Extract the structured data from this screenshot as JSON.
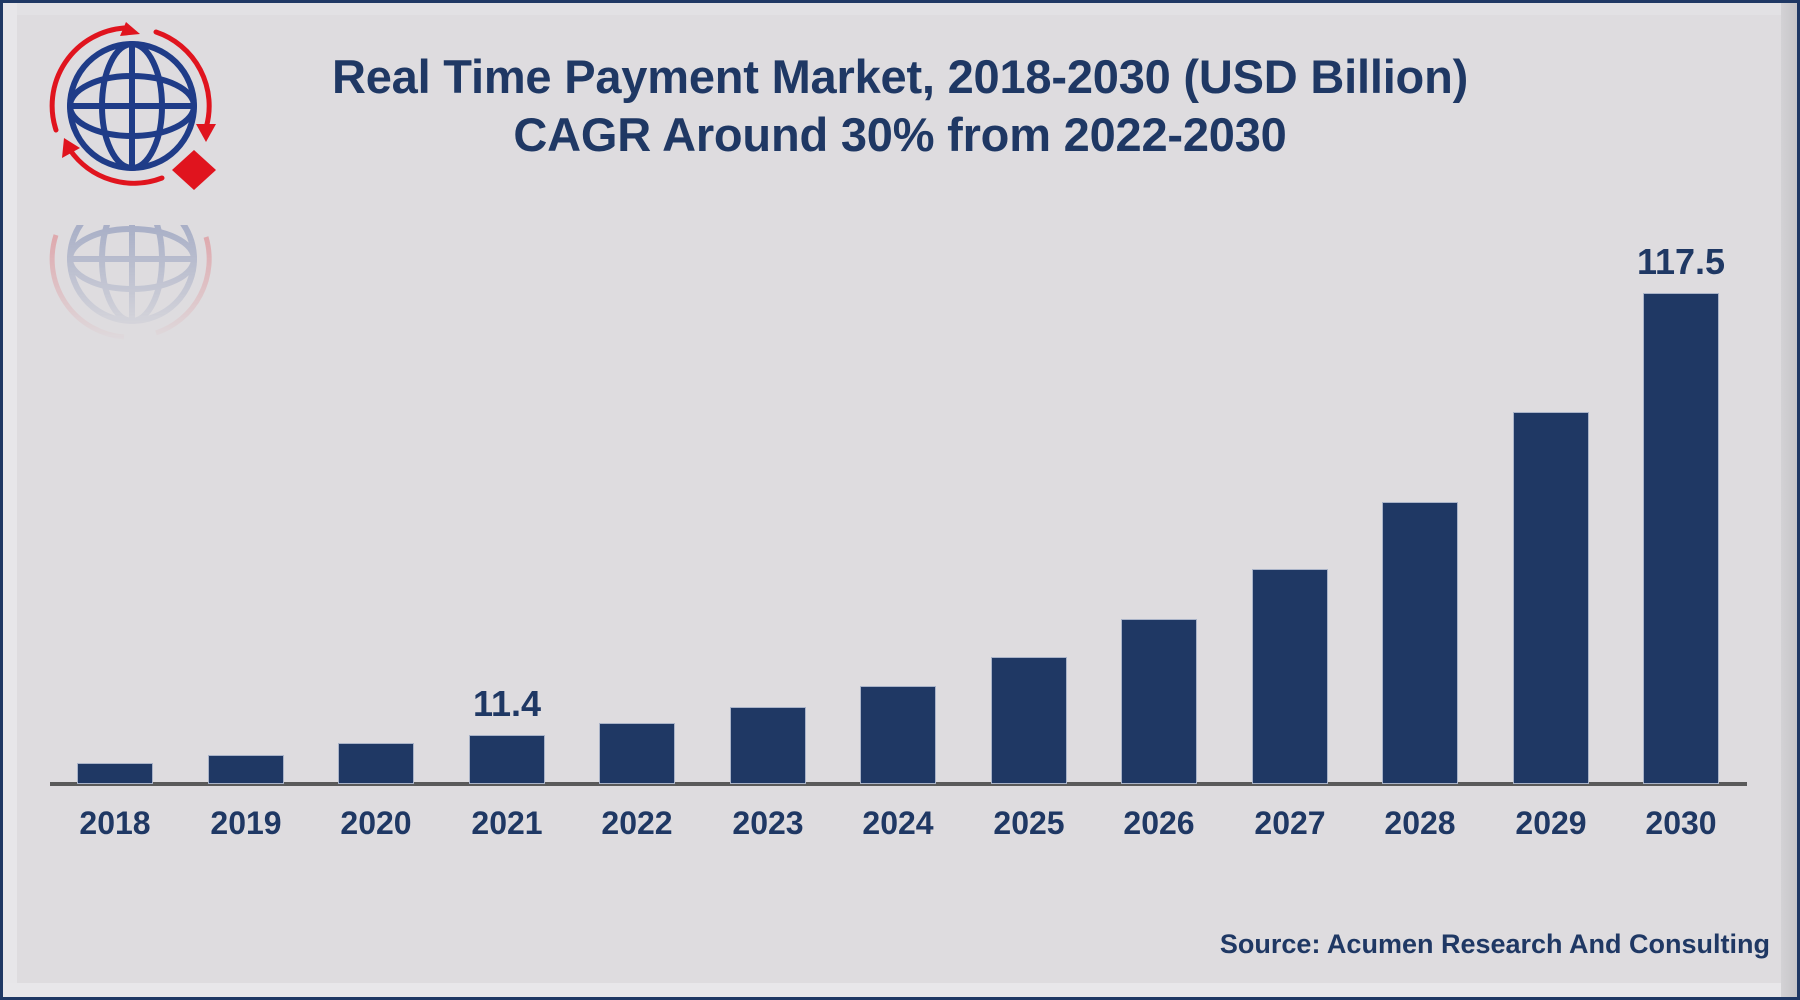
{
  "title": {
    "line1": "Real Time Payment Market, 2018-2030 (USD Billion)",
    "line2": "CAGR Around 30% from 2022-2030"
  },
  "source": "Source: Acumen Research And Consulting",
  "logo": {
    "icon": "globe-with-arrows-icon",
    "colors": {
      "globe": "#1f3c88",
      "arrows": "#e0141e"
    }
  },
  "colors": {
    "bar": "#1f3864",
    "text": "#1f3864",
    "axis": "#5a5a5a",
    "background": "#dedcdf",
    "border": "#1f3864"
  },
  "chart_data": {
    "type": "bar",
    "title": "Real Time Payment Market, 2018-2030 (USD Billion)",
    "subtitle": "CAGR Around 30% from 2022-2030",
    "xlabel": "",
    "ylabel": "USD Billion",
    "categories": [
      "2018",
      "2019",
      "2020",
      "2021",
      "2022",
      "2023",
      "2024",
      "2025",
      "2026",
      "2027",
      "2028",
      "2029",
      "2030"
    ],
    "values": [
      4.6,
      6.5,
      9.4,
      11.4,
      14.2,
      18.0,
      23.1,
      30.0,
      39.2,
      51.2,
      67.3,
      88.9,
      117.5
    ],
    "data_labels": [
      {
        "category": "2021",
        "text": "11.4"
      },
      {
        "category": "2030",
        "text": "117.5"
      }
    ],
    "ylim": [
      0,
      117.5
    ],
    "grid": false,
    "legend": "none",
    "source": "Source: Acumen Research And Consulting"
  }
}
